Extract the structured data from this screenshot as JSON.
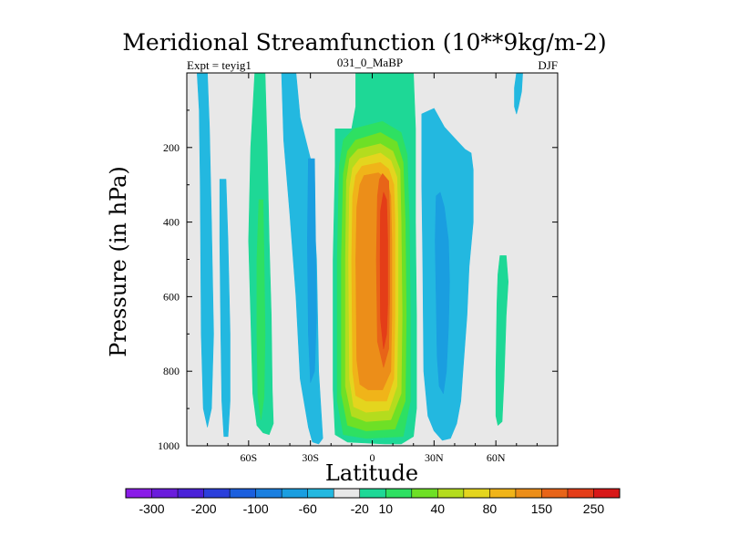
{
  "chart_data": {
    "type": "heatmap",
    "title": "Meridional Streamfunction (10**9kg/m-2)",
    "subtitle_left": "Expt = teyig1",
    "subtitle_center": "031_0_MaBP",
    "subtitle_right": "DJF",
    "xlabel": "Latitude",
    "ylabel": "Pressure (in hPa)",
    "xlim": [
      -90,
      90
    ],
    "ylim": [
      0,
      1000
    ],
    "y_inverted": true,
    "x_ticks": [
      {
        "value": -60,
        "label": "60S"
      },
      {
        "value": -30,
        "label": "30S"
      },
      {
        "value": 0,
        "label": "0"
      },
      {
        "value": 30,
        "label": "30N"
      },
      {
        "value": 60,
        "label": "60N"
      }
    ],
    "y_ticks": [
      {
        "value": 200,
        "label": "200"
      },
      {
        "value": 400,
        "label": "400"
      },
      {
        "value": 600,
        "label": "600"
      },
      {
        "value": 800,
        "label": "800"
      },
      {
        "value": 1000,
        "label": "1000"
      }
    ],
    "background_level": "-5 to 5",
    "colorbar": {
      "colors": [
        "#8a1ce8",
        "#6a1cdc",
        "#4a21d8",
        "#2b3fdb",
        "#1b5fde",
        "#1a7fe0",
        "#1a9ee0",
        "#23b8e0",
        "#e8e8e8",
        "#1ed896",
        "#2ee062",
        "#6ee026",
        "#b4dc1e",
        "#e4d51e",
        "#f0b419",
        "#ec8e19",
        "#e86418",
        "#e43d18",
        "#d81818"
      ],
      "labels": [
        {
          "boundary": 1,
          "text": "-300"
        },
        {
          "boundary": 3,
          "text": "-200"
        },
        {
          "boundary": 5,
          "text": "-100"
        },
        {
          "boundary": 7,
          "text": "-60"
        },
        {
          "boundary": 9,
          "text": "-20"
        },
        {
          "boundary": 10,
          "text": "10"
        },
        {
          "boundary": 12,
          "text": "40"
        },
        {
          "boundary": 14,
          "text": "80"
        },
        {
          "boundary": 16,
          "text": "150"
        },
        {
          "boundary": 18,
          "text": "250"
        }
      ]
    },
    "cells": [
      {
        "name": "cell-sh-polar-neg",
        "level": "-20",
        "color": "#23b8e0",
        "points": [
          [
            -85,
            0
          ],
          [
            -80,
            0
          ],
          [
            -79,
            150
          ],
          [
            -78,
            400
          ],
          [
            -77,
            700
          ],
          [
            -78,
            900
          ],
          [
            -80,
            950
          ],
          [
            -82,
            900
          ],
          [
            -83,
            700
          ],
          [
            -83.5,
            300
          ],
          [
            -84,
            100
          ]
        ]
      },
      {
        "name": "cell-sh-60s-neg",
        "level": "-20",
        "color": "#23b8e0",
        "points": [
          [
            -74,
            285
          ],
          [
            -71,
            285
          ],
          [
            -70,
            450
          ],
          [
            -69,
            700
          ],
          [
            -69,
            880
          ],
          [
            -70,
            975
          ],
          [
            -72,
            975
          ],
          [
            -73,
            880
          ],
          [
            -73.5,
            700
          ],
          [
            -74,
            450
          ]
        ]
      },
      {
        "name": "cell-sh-ferrel-pos",
        "level": "10",
        "color": "#1ed896",
        "points": [
          [
            -57,
            0
          ],
          [
            -52,
            0
          ],
          [
            -51,
            200
          ],
          [
            -50,
            450
          ],
          [
            -49,
            650
          ],
          [
            -48.5,
            850
          ],
          [
            -48,
            940
          ],
          [
            -50,
            970
          ],
          [
            -53,
            965
          ],
          [
            -56,
            945
          ],
          [
            -58,
            860
          ],
          [
            -59,
            650
          ],
          [
            -60,
            450
          ],
          [
            -59,
            200
          ]
        ]
      },
      {
        "name": "cell-sh-ferrel-pos-inner",
        "level": "40",
        "color": "#2ee062",
        "points": [
          [
            -55,
            340
          ],
          [
            -53,
            340
          ],
          [
            -52.5,
            500
          ],
          [
            -52,
            700
          ],
          [
            -52.5,
            870
          ],
          [
            -54,
            930
          ],
          [
            -55.5,
            870
          ],
          [
            -56,
            700
          ],
          [
            -56,
            500
          ]
        ]
      },
      {
        "name": "cell-sh-subtrop-neg",
        "level": "-20",
        "color": "#23b8e0",
        "points": [
          [
            -44,
            0
          ],
          [
            -37,
            0
          ],
          [
            -35,
            120
          ],
          [
            -30,
            230
          ],
          [
            -27,
            500
          ],
          [
            -26,
            800
          ],
          [
            -24,
            980
          ],
          [
            -26,
            995
          ],
          [
            -29,
            990
          ],
          [
            -31,
            950
          ],
          [
            -35,
            820
          ],
          [
            -37,
            600
          ],
          [
            -40,
            380
          ],
          [
            -43,
            180
          ]
        ]
      },
      {
        "name": "cell-sh-subtrop-neg-inner",
        "level": "-60",
        "color": "#1a9ee0",
        "points": [
          [
            -31,
            230
          ],
          [
            -28,
            230
          ],
          [
            -27.5,
            450
          ],
          [
            -27,
            650
          ],
          [
            -28,
            800
          ],
          [
            -30,
            830
          ],
          [
            -31,
            700
          ],
          [
            -31.5,
            450
          ]
        ]
      },
      {
        "name": "cell-hadley-10",
        "level": "10",
        "color": "#1ed896",
        "points": [
          [
            -8,
            0
          ],
          [
            20,
            0
          ],
          [
            21,
            150
          ],
          [
            21,
            400
          ],
          [
            21.5,
            650
          ],
          [
            21.5,
            900
          ],
          [
            20,
            975
          ],
          [
            14,
            995
          ],
          [
            6,
            995
          ],
          [
            -12,
            990
          ],
          [
            -18,
            970
          ],
          [
            -19,
            850
          ],
          [
            -19,
            500
          ],
          [
            -18,
            250
          ],
          [
            -18,
            150
          ],
          [
            -10,
            150
          ],
          [
            -8,
            90
          ]
        ]
      },
      {
        "name": "cell-hadley-40",
        "level": "40",
        "color": "#2ee062",
        "points": [
          [
            -9,
            150
          ],
          [
            5,
            130
          ],
          [
            14,
            160
          ],
          [
            17,
            220
          ],
          [
            18,
            400
          ],
          [
            18.5,
            650
          ],
          [
            18.5,
            880
          ],
          [
            15,
            975
          ],
          [
            -3,
            980
          ],
          [
            -14,
            970
          ],
          [
            -17,
            880
          ],
          [
            -17,
            500
          ],
          [
            -16,
            250
          ],
          [
            -14,
            180
          ]
        ]
      },
      {
        "name": "cell-hadley-60",
        "level": "60",
        "color": "#6ee026",
        "points": [
          [
            -8,
            180
          ],
          [
            4,
            160
          ],
          [
            12,
            185
          ],
          [
            15,
            240
          ],
          [
            16,
            400
          ],
          [
            16.5,
            650
          ],
          [
            16,
            880
          ],
          [
            11,
            955
          ],
          [
            -3,
            960
          ],
          [
            -12,
            945
          ],
          [
            -15,
            860
          ],
          [
            -15,
            500
          ],
          [
            -14,
            270
          ],
          [
            -12,
            210
          ]
        ]
      },
      {
        "name": "cell-hadley-80",
        "level": "80",
        "color": "#b4dc1e",
        "points": [
          [
            -7,
            205
          ],
          [
            4,
            190
          ],
          [
            10,
            210
          ],
          [
            13.5,
            260
          ],
          [
            14,
            400
          ],
          [
            14.5,
            650
          ],
          [
            14,
            860
          ],
          [
            9,
            930
          ],
          [
            -3,
            935
          ],
          [
            -10,
            920
          ],
          [
            -13,
            840
          ],
          [
            -13,
            500
          ],
          [
            -12.5,
            290
          ],
          [
            -11,
            230
          ]
        ]
      },
      {
        "name": "cell-hadley-100",
        "level": "100",
        "color": "#e4d51e",
        "points": [
          [
            -6,
            230
          ],
          [
            4,
            215
          ],
          [
            9,
            235
          ],
          [
            12,
            280
          ],
          [
            12.5,
            400
          ],
          [
            12.5,
            650
          ],
          [
            12,
            840
          ],
          [
            8,
            905
          ],
          [
            -3,
            910
          ],
          [
            -9,
            895
          ],
          [
            -11,
            820
          ],
          [
            -11.5,
            500
          ],
          [
            -11,
            310
          ],
          [
            -9.5,
            255
          ]
        ]
      },
      {
        "name": "cell-hadley-150",
        "level": "150",
        "color": "#f0b419",
        "points": [
          [
            -5,
            250
          ],
          [
            4,
            240
          ],
          [
            8,
            258
          ],
          [
            10.5,
            300
          ],
          [
            11,
            400
          ],
          [
            11,
            650
          ],
          [
            10.5,
            820
          ],
          [
            7,
            880
          ],
          [
            -3,
            880
          ],
          [
            -8,
            865
          ],
          [
            -9.5,
            800
          ],
          [
            -10,
            500
          ],
          [
            -9.5,
            330
          ],
          [
            -8,
            275
          ]
        ]
      },
      {
        "name": "cell-hadley-200",
        "level": "200",
        "color": "#ec8e19",
        "points": [
          [
            -4,
            275
          ],
          [
            3,
            268
          ],
          [
            7,
            285
          ],
          [
            9,
            330
          ],
          [
            9.5,
            450
          ],
          [
            9.5,
            650
          ],
          [
            9,
            800
          ],
          [
            5,
            850
          ],
          [
            -2,
            850
          ],
          [
            -6,
            835
          ],
          [
            -7.5,
            770
          ],
          [
            -8,
            500
          ],
          [
            -7.5,
            360
          ],
          [
            -6,
            300
          ]
        ]
      },
      {
        "name": "cell-hadley-250",
        "level": "250",
        "color": "#e86418",
        "points": [
          [
            5,
            270
          ],
          [
            8,
            290
          ],
          [
            8.5,
            380
          ],
          [
            8.5,
            600
          ],
          [
            8,
            740
          ],
          [
            5.5,
            790
          ],
          [
            2.5,
            720
          ],
          [
            2,
            500
          ],
          [
            2.5,
            330
          ],
          [
            3.5,
            285
          ]
        ]
      },
      {
        "name": "cell-hadley-300",
        "level": "300",
        "color": "#e43d18",
        "points": [
          [
            5.5,
            320
          ],
          [
            7,
            340
          ],
          [
            7.5,
            450
          ],
          [
            7.5,
            620
          ],
          [
            7,
            700
          ],
          [
            5.5,
            740
          ],
          [
            4,
            660
          ],
          [
            3.8,
            500
          ],
          [
            4,
            370
          ]
        ]
      },
      {
        "name": "cell-nh-subtrop-neg",
        "level": "-20",
        "color": "#23b8e0",
        "points": [
          [
            24,
            110
          ],
          [
            30,
            95
          ],
          [
            35,
            145
          ],
          [
            40,
            175
          ],
          [
            45,
            205
          ],
          [
            48,
            215
          ],
          [
            49,
            260
          ],
          [
            49,
            400
          ],
          [
            47,
            520
          ],
          [
            46,
            650
          ],
          [
            44,
            800
          ],
          [
            43,
            880
          ],
          [
            41,
            940
          ],
          [
            38,
            980
          ],
          [
            34,
            985
          ],
          [
            30,
            960
          ],
          [
            27,
            920
          ],
          [
            25,
            800
          ],
          [
            24.5,
            500
          ],
          [
            24,
            300
          ]
        ]
      },
      {
        "name": "cell-nh-subtrop-neg-inner",
        "level": "-60",
        "color": "#1a9ee0",
        "points": [
          [
            31,
            330
          ],
          [
            33,
            320
          ],
          [
            35,
            360
          ],
          [
            37,
            450
          ],
          [
            37.5,
            560
          ],
          [
            37,
            680
          ],
          [
            36,
            800
          ],
          [
            34.5,
            860
          ],
          [
            32.5,
            840
          ],
          [
            31.5,
            760
          ],
          [
            31,
            600
          ],
          [
            30.5,
            450
          ]
        ]
      },
      {
        "name": "cell-nh-polar-pos",
        "level": "10",
        "color": "#1ed896",
        "points": [
          [
            62,
            490
          ],
          [
            65,
            490
          ],
          [
            66,
            560
          ],
          [
            65,
            650
          ],
          [
            64,
            820
          ],
          [
            63,
            935
          ],
          [
            61,
            945
          ],
          [
            60,
            920
          ],
          [
            60,
            800
          ],
          [
            60.5,
            620
          ],
          [
            61,
            540
          ]
        ]
      },
      {
        "name": "cell-nh-top-neg",
        "level": "-20",
        "color": "#23b8e0",
        "points": [
          [
            70,
            0
          ],
          [
            73,
            0
          ],
          [
            72.5,
            50
          ],
          [
            71,
            90
          ],
          [
            70,
            110
          ],
          [
            69,
            90
          ],
          [
            69,
            40
          ]
        ]
      }
    ]
  }
}
